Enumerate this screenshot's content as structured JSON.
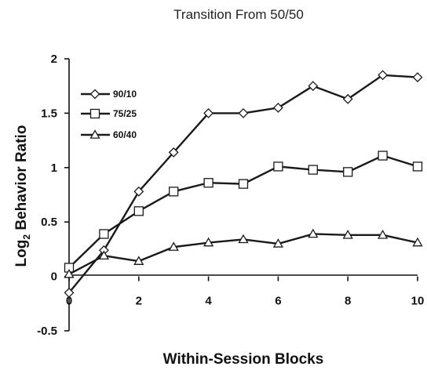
{
  "chart_data": {
    "type": "line",
    "title": "Transition From 50/50",
    "xlabel": "Within-Session Blocks",
    "ylabel_main": "Log",
    "ylabel_sub": "2",
    "ylabel_rest": " Behavior Ratio",
    "x": [
      0,
      1,
      2,
      3,
      4,
      5,
      6,
      7,
      8,
      9,
      10
    ],
    "xlim": [
      0,
      10
    ],
    "ylim": [
      -0.5,
      2
    ],
    "xticks": [
      0,
      2,
      4,
      6,
      8,
      10
    ],
    "yticks": [
      -0.5,
      0,
      0.5,
      1,
      1.5,
      2
    ],
    "xtick_labels": [
      "0",
      "2",
      "4",
      "6",
      "8",
      "10"
    ],
    "ytick_labels": [
      "-0.5",
      "0",
      "0.5",
      "1",
      "1.5",
      "2"
    ],
    "legend_position": "upper-left",
    "series": [
      {
        "name": "90/10",
        "marker": "diamond",
        "values": [
          -0.15,
          0.24,
          0.78,
          1.14,
          1.5,
          1.5,
          1.55,
          1.75,
          1.63,
          1.85,
          1.83
        ]
      },
      {
        "name": "75/25",
        "marker": "square",
        "values": [
          0.08,
          0.39,
          0.6,
          0.78,
          0.86,
          0.85,
          1.01,
          0.98,
          0.96,
          1.11,
          1.01
        ]
      },
      {
        "name": "60/40",
        "marker": "triangle",
        "values": [
          0.02,
          0.19,
          0.14,
          0.27,
          0.31,
          0.34,
          0.3,
          0.39,
          0.38,
          0.38,
          0.31
        ]
      }
    ]
  }
}
